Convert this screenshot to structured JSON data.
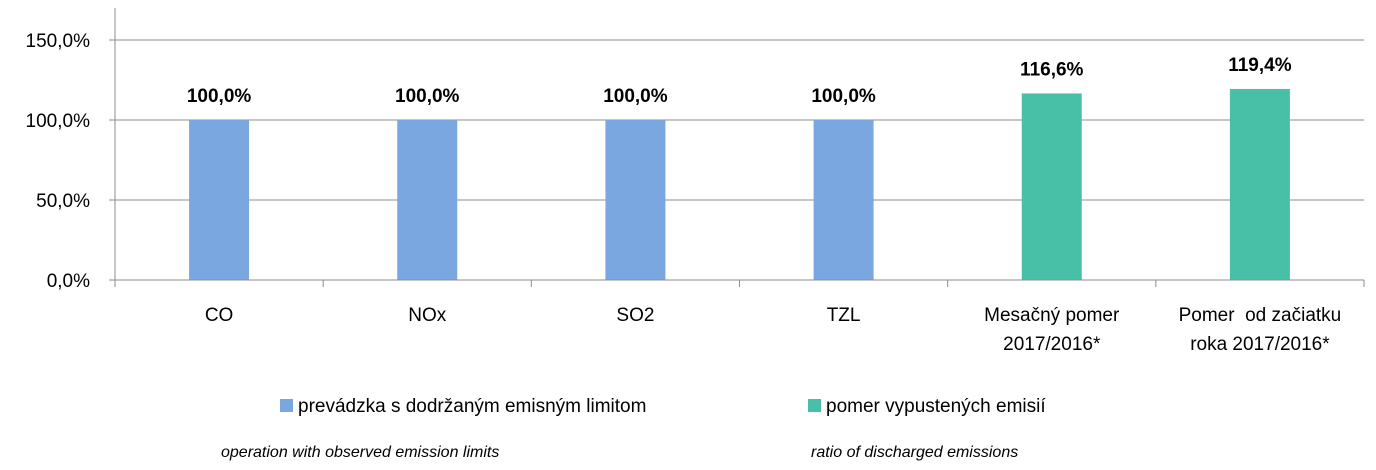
{
  "chart_data": {
    "type": "bar",
    "categories": [
      [
        "CO"
      ],
      [
        "NOx"
      ],
      [
        "SO2"
      ],
      [
        "TZL"
      ],
      [
        "Mesačný pomer",
        "2017/2016*"
      ],
      [
        "Pomer  od začiatku",
        "roka 2017/2016*"
      ]
    ],
    "series": [
      {
        "name": "prevádzka s dodržaným emisným limitom",
        "color": "#7BA7E0",
        "values": [
          100.0,
          100.0,
          100.0,
          100.0,
          null,
          null
        ],
        "labels": [
          "100,0%",
          "100,0%",
          "100,0%",
          "100,0%",
          "",
          ""
        ]
      },
      {
        "name": "pomer vypustených emisií",
        "color": "#48BFA7",
        "values": [
          null,
          null,
          null,
          null,
          116.6,
          119.4
        ],
        "labels": [
          "",
          "",
          "",
          "",
          "116,6%",
          "119,4%"
        ]
      }
    ],
    "y_ticks": [
      "0,0%",
      "50,0%",
      "100,0%",
      "150,0%"
    ],
    "y_tick_values": [
      0,
      50,
      100,
      150
    ],
    "ylim": [
      0,
      150
    ],
    "grid": true,
    "legend_position": "bottom"
  },
  "notes": {
    "left": "operation with observed emission limits",
    "right": "ratio of discharged emissions"
  }
}
